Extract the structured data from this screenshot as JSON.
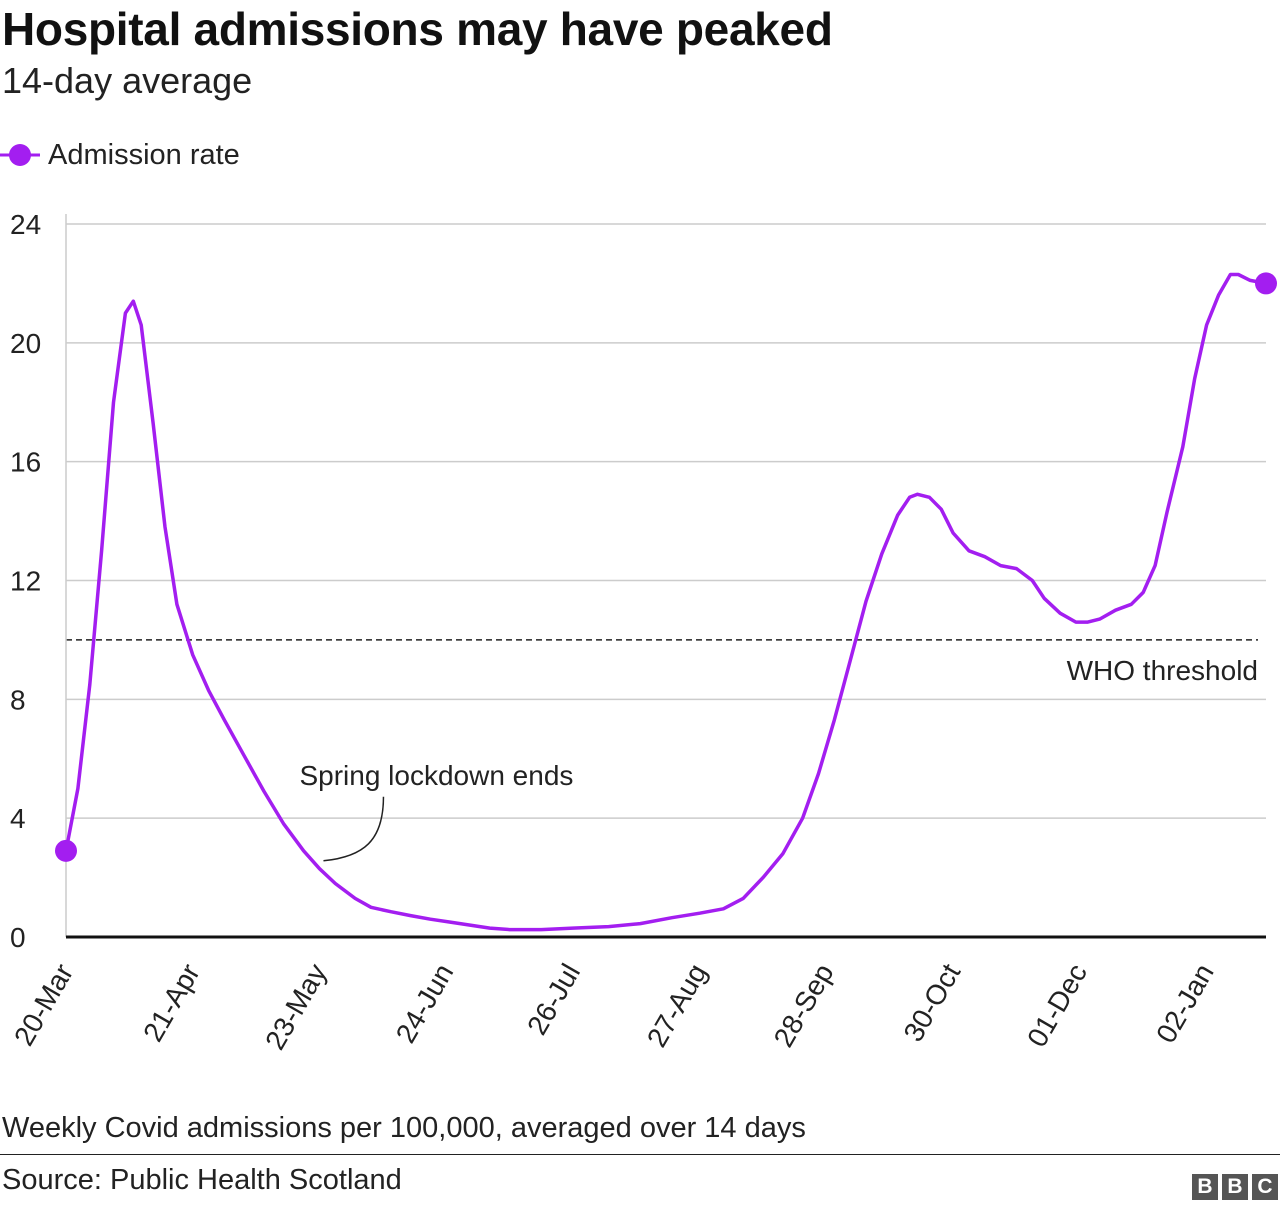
{
  "title": "Hospital admissions may have peaked",
  "subtitle": "14-day average",
  "footnote": "Weekly Covid admissions per 100,000, averaged over 14 days",
  "source": "Source: Public Health Scotland",
  "logo": [
    "B",
    "B",
    "C"
  ],
  "colors": {
    "line": "#a31ef0",
    "grid": "#cccccc",
    "axis": "#111111",
    "threshold": "#222222"
  },
  "chart_data": {
    "type": "line",
    "xlabel": "",
    "ylabel": "",
    "ylim": [
      0,
      24
    ],
    "yticks": [
      0,
      4,
      8,
      12,
      16,
      20,
      24
    ],
    "xlim": [
      "2020-03-20",
      "2021-01-17"
    ],
    "xticks": [
      {
        "date": "2020-03-20",
        "label": "20-Mar"
      },
      {
        "date": "2020-04-21",
        "label": "21-Apr"
      },
      {
        "date": "2020-05-23",
        "label": "23-May"
      },
      {
        "date": "2020-06-24",
        "label": "24-Jun"
      },
      {
        "date": "2020-07-26",
        "label": "26-Jul"
      },
      {
        "date": "2020-08-27",
        "label": "27-Aug"
      },
      {
        "date": "2020-09-28",
        "label": "28-Sep"
      },
      {
        "date": "2020-10-30",
        "label": "30-Oct"
      },
      {
        "date": "2020-12-01",
        "label": "01-Dec"
      },
      {
        "date": "2021-01-02",
        "label": "02-Jan"
      }
    ],
    "grid": true,
    "legend_position": "top-left",
    "series": [
      {
        "name": "Admission rate",
        "points": [
          [
            "2020-03-20",
            2.9
          ],
          [
            "2020-03-23",
            5.0
          ],
          [
            "2020-03-26",
            8.5
          ],
          [
            "2020-03-29",
            13.0
          ],
          [
            "2020-04-01",
            18.0
          ],
          [
            "2020-04-04",
            21.0
          ],
          [
            "2020-04-06",
            21.4
          ],
          [
            "2020-04-08",
            20.6
          ],
          [
            "2020-04-11",
            17.3
          ],
          [
            "2020-04-14",
            13.8
          ],
          [
            "2020-04-17",
            11.2
          ],
          [
            "2020-04-21",
            9.5
          ],
          [
            "2020-04-25",
            8.3
          ],
          [
            "2020-04-29",
            7.3
          ],
          [
            "2020-05-04",
            6.1
          ],
          [
            "2020-05-09",
            4.9
          ],
          [
            "2020-05-14",
            3.8
          ],
          [
            "2020-05-19",
            2.9
          ],
          [
            "2020-05-23",
            2.3
          ],
          [
            "2020-05-27",
            1.8
          ],
          [
            "2020-06-01",
            1.3
          ],
          [
            "2020-06-05",
            1.0
          ],
          [
            "2020-06-10",
            0.85
          ],
          [
            "2020-06-15",
            0.72
          ],
          [
            "2020-06-20",
            0.6
          ],
          [
            "2020-06-25",
            0.5
          ],
          [
            "2020-06-30",
            0.4
          ],
          [
            "2020-07-05",
            0.3
          ],
          [
            "2020-07-10",
            0.25
          ],
          [
            "2020-07-18",
            0.25
          ],
          [
            "2020-07-26",
            0.3
          ],
          [
            "2020-08-04",
            0.35
          ],
          [
            "2020-08-12",
            0.45
          ],
          [
            "2020-08-20",
            0.65
          ],
          [
            "2020-08-27",
            0.8
          ],
          [
            "2020-09-02",
            0.95
          ],
          [
            "2020-09-07",
            1.3
          ],
          [
            "2020-09-12",
            2.0
          ],
          [
            "2020-09-17",
            2.8
          ],
          [
            "2020-09-22",
            4.0
          ],
          [
            "2020-09-26",
            5.5
          ],
          [
            "2020-09-30",
            7.3
          ],
          [
            "2020-10-04",
            9.3
          ],
          [
            "2020-10-08",
            11.3
          ],
          [
            "2020-10-12",
            12.9
          ],
          [
            "2020-10-16",
            14.2
          ],
          [
            "2020-10-19",
            14.8
          ],
          [
            "2020-10-21",
            14.9
          ],
          [
            "2020-10-24",
            14.8
          ],
          [
            "2020-10-27",
            14.4
          ],
          [
            "2020-10-30",
            13.6
          ],
          [
            "2020-11-03",
            13.0
          ],
          [
            "2020-11-07",
            12.8
          ],
          [
            "2020-11-11",
            12.5
          ],
          [
            "2020-11-15",
            12.4
          ],
          [
            "2020-11-19",
            12.0
          ],
          [
            "2020-11-22",
            11.4
          ],
          [
            "2020-11-26",
            10.9
          ],
          [
            "2020-11-30",
            10.6
          ],
          [
            "2020-12-03",
            10.6
          ],
          [
            "2020-12-06",
            10.7
          ],
          [
            "2020-12-10",
            11.0
          ],
          [
            "2020-12-14",
            11.2
          ],
          [
            "2020-12-17",
            11.6
          ],
          [
            "2020-12-20",
            12.5
          ],
          [
            "2020-12-23",
            14.3
          ],
          [
            "2020-12-27",
            16.5
          ],
          [
            "2020-12-30",
            18.8
          ],
          [
            "2021-01-02",
            20.6
          ],
          [
            "2021-01-05",
            21.6
          ],
          [
            "2021-01-08",
            22.3
          ],
          [
            "2021-01-10",
            22.3
          ],
          [
            "2021-01-13",
            22.1
          ],
          [
            "2021-01-17",
            22.0
          ]
        ]
      }
    ],
    "reference_lines": [
      {
        "y": 10,
        "label": "WHO threshold",
        "style": "dashed"
      }
    ],
    "annotations": [
      {
        "text": "Spring lockdown ends",
        "date": "2020-05-23",
        "y": 2.7
      }
    ],
    "endpoint_markers": true
  }
}
